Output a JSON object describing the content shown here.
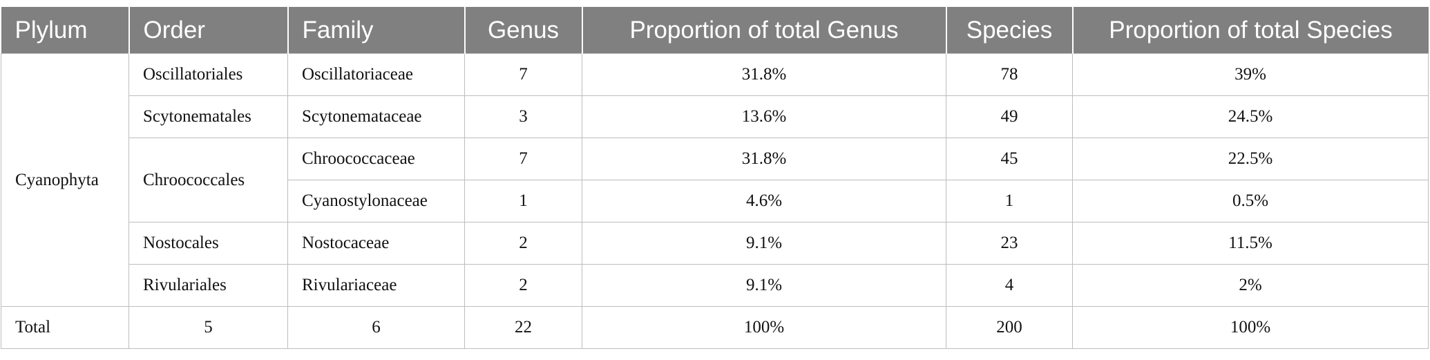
{
  "table": {
    "header": [
      "Plylum",
      "Order",
      "Family",
      "Genus",
      "Proportion of total Genus",
      "Species",
      "Proportion of total Species"
    ],
    "rows": [
      [
        "Cyanophyta",
        "Oscillatoriales",
        "Oscillatoriaceae",
        7,
        "31.8%",
        78,
        "39%"
      ],
      [
        "Scytonematales",
        "Scytonemataceae",
        3,
        "13.6%",
        49,
        "24.5%"
      ],
      [
        "Chroococcales",
        "Chroococcaceae",
        7,
        "31.8%",
        45,
        "22.5%"
      ],
      [
        "Cyanostylonaceae",
        1,
        "4.6%",
        1,
        "0.5%"
      ],
      [
        "Nostocales",
        "Nostocaceae",
        2,
        "9.1%",
        23,
        "11.5%"
      ],
      [
        "Rivulariales",
        "Rivulariaceae",
        2,
        "9.1%",
        4,
        "2%"
      ],
      [
        "Total",
        5,
        6,
        22,
        "100%",
        200,
        "100%"
      ]
    ]
  }
}
